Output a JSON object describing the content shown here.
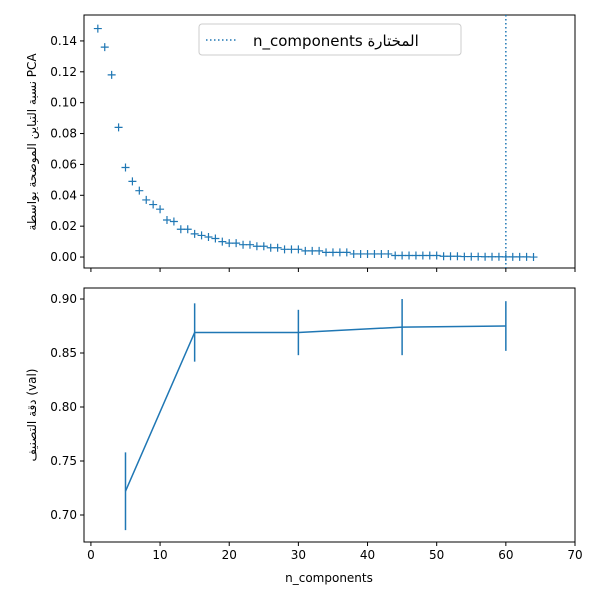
{
  "chart_data": [
    {
      "type": "scatter",
      "marker": "plus",
      "ylabel": "نسبة التباين الموضحة بواسطة PCA",
      "xlabel": "",
      "xlim": [
        -1,
        70
      ],
      "ylim": [
        -0.0071,
        0.1568
      ],
      "xticks": [
        0,
        10,
        20,
        30,
        40,
        50,
        60,
        70
      ],
      "xtick_labels_shown": false,
      "yticks": [
        "0.00",
        "0.02",
        "0.04",
        "0.06",
        "0.08",
        "0.10",
        "0.12",
        "0.14"
      ],
      "x": [
        1,
        2,
        3,
        4,
        5,
        6,
        7,
        8,
        9,
        10,
        11,
        12,
        13,
        14,
        15,
        16,
        17,
        18,
        19,
        20,
        21,
        22,
        23,
        24,
        25,
        26,
        27,
        28,
        29,
        30,
        31,
        32,
        33,
        34,
        35,
        36,
        37,
        38,
        39,
        40,
        41,
        42,
        43,
        44,
        45,
        46,
        47,
        48,
        49,
        50,
        51,
        52,
        53,
        54,
        55,
        56,
        57,
        58,
        59,
        60,
        61,
        62,
        63,
        64
      ],
      "y": [
        0.148,
        0.136,
        0.118,
        0.084,
        0.058,
        0.049,
        0.043,
        0.037,
        0.034,
        0.031,
        0.024,
        0.023,
        0.018,
        0.018,
        0.015,
        0.014,
        0.013,
        0.012,
        0.01,
        0.009,
        0.009,
        0.008,
        0.008,
        0.007,
        0.007,
        0.006,
        0.006,
        0.005,
        0.005,
        0.005,
        0.004,
        0.004,
        0.004,
        0.003,
        0.003,
        0.003,
        0.003,
        0.002,
        0.002,
        0.002,
        0.002,
        0.002,
        0.002,
        0.001,
        0.001,
        0.001,
        0.001,
        0.001,
        0.001,
        0.001,
        0.0005,
        0.0005,
        0.0005,
        0.0003,
        0.0003,
        0.0003,
        0.0002,
        0.0002,
        0.0002,
        0.0001,
        0.0001,
        0.0001,
        0.0001,
        0.0
      ],
      "vline": {
        "x": 60,
        "style": "dotted",
        "label": "n_components المختارة"
      },
      "legend": {
        "placement": "upper-center",
        "entries": [
          "n_components المختارة"
        ]
      },
      "color": "#1f77b4",
      "grid": false
    },
    {
      "type": "line",
      "errorbars": true,
      "xlabel": "n_components",
      "ylabel": "دقة التصنيف (val)",
      "xlim": [
        -1,
        70
      ],
      "ylim": [
        0.675,
        0.9102
      ],
      "xticks": [
        "0",
        "10",
        "20",
        "30",
        "40",
        "50",
        "60",
        "70"
      ],
      "yticks": [
        "0.70",
        "0.75",
        "0.80",
        "0.85",
        "0.90"
      ],
      "x": [
        5,
        15,
        30,
        45,
        60
      ],
      "y": [
        0.722,
        0.869,
        0.869,
        0.874,
        0.875
      ],
      "yerr": [
        0.036,
        0.027,
        0.021,
        0.026,
        0.023
      ],
      "color": "#1f77b4",
      "grid": false
    }
  ]
}
